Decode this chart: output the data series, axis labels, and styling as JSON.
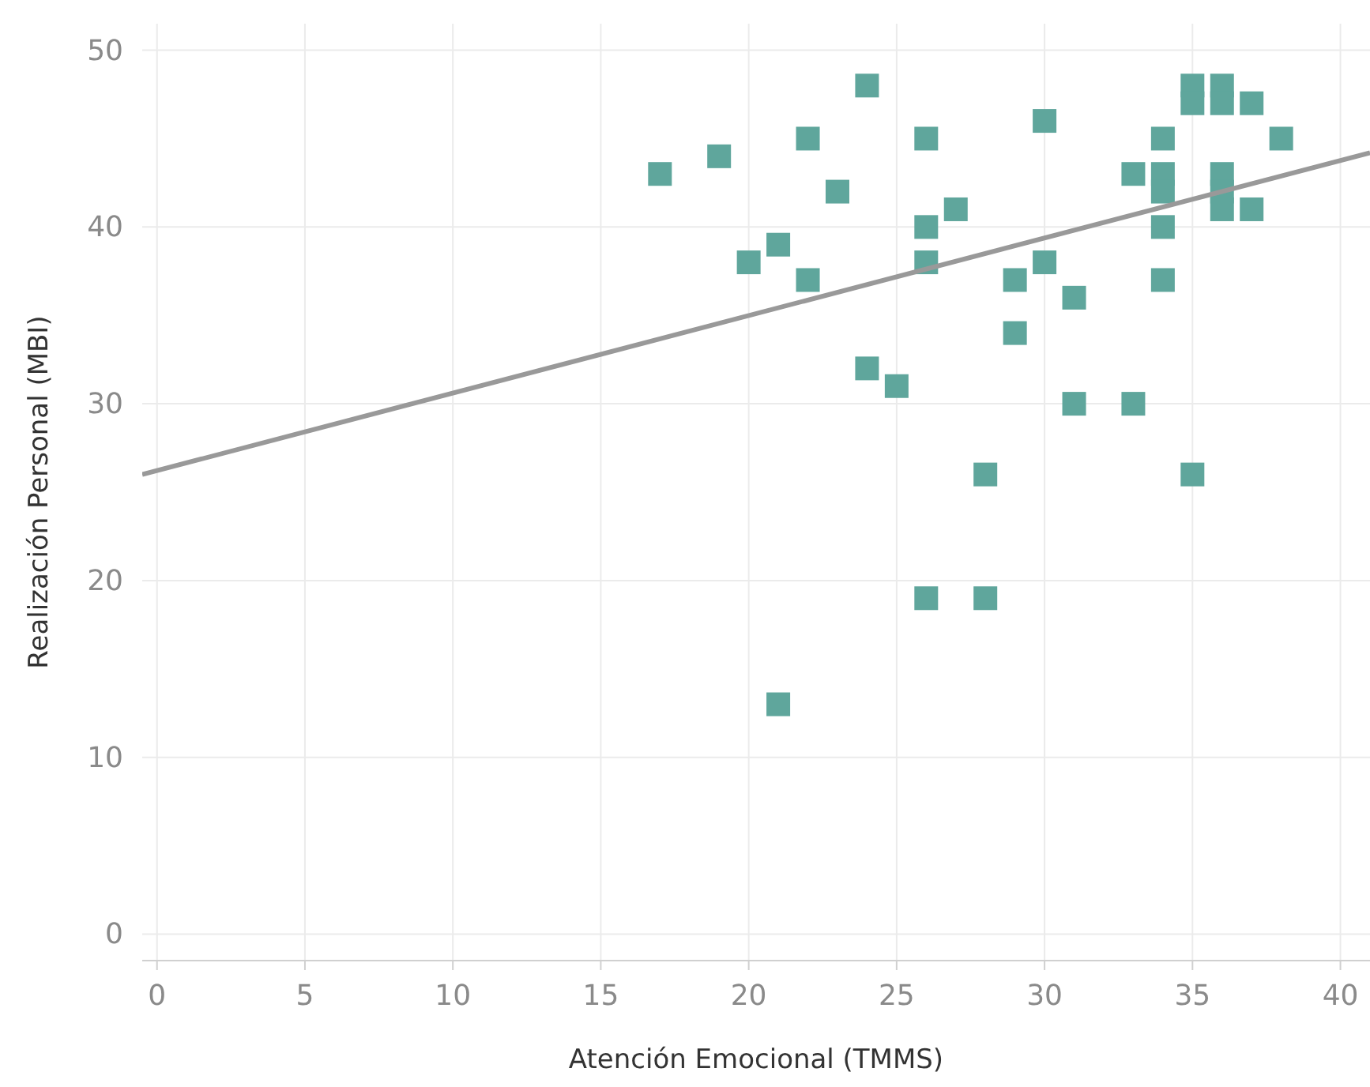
{
  "chart_data": {
    "type": "scatter",
    "xlabel": "Atención Emocional (TMMS)",
    "ylabel": "Realización Personal (MBI)",
    "xlim": [
      -0.5,
      41
    ],
    "ylim": [
      -1.5,
      51.5
    ],
    "xticks": [
      0,
      5,
      10,
      15,
      20,
      25,
      30,
      35,
      40
    ],
    "yticks": [
      0,
      10,
      20,
      30,
      40,
      50
    ],
    "grid": true,
    "marker": "square",
    "series": [
      {
        "color": "#5fa69c",
        "x": [
          17,
          19,
          20,
          21,
          21,
          22,
          22,
          23,
          24,
          24,
          25,
          26,
          26,
          26,
          26,
          27,
          28,
          28,
          29,
          29,
          30,
          30,
          31,
          31,
          33,
          33,
          34,
          34,
          34,
          34,
          34,
          35,
          35,
          35,
          36,
          36,
          36,
          36,
          36,
          37,
          37,
          38
        ],
        "values": [
          43,
          44,
          38,
          39,
          13,
          45,
          37,
          42,
          48,
          32,
          31,
          45,
          40,
          38,
          19,
          41,
          26,
          19,
          37,
          34,
          46,
          38,
          36,
          30,
          43,
          30,
          45,
          43,
          42,
          40,
          37,
          48,
          47,
          26,
          48,
          47,
          43,
          42,
          41,
          47,
          41,
          45
        ]
      },
      {
        "type": "line",
        "color": "#999999",
        "x": [
          -0.5,
          41
        ],
        "values": [
          26.0,
          44.2
        ],
        "marker": "none"
      }
    ]
  }
}
